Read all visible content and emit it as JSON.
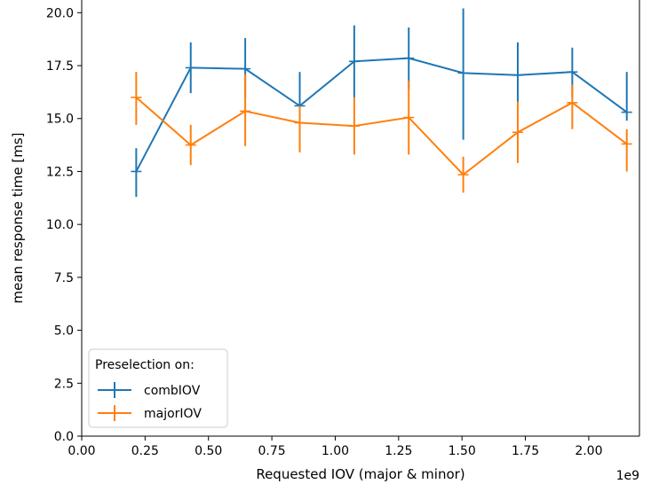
{
  "chart_data": {
    "type": "line",
    "xlabel": "Requested IOV (major & minor)",
    "ylabel": "mean response time [ms]",
    "x_offset_label": "1e9",
    "xlim": [
      0.0,
      2.2
    ],
    "ylim": [
      0.0,
      20.6
    ],
    "x_ticks": [
      "0.00",
      "0.25",
      "0.50",
      "0.75",
      "1.00",
      "1.25",
      "1.50",
      "1.75",
      "2.00"
    ],
    "y_ticks": [
      "0.0",
      "2.5",
      "5.0",
      "7.5",
      "10.0",
      "12.5",
      "15.0",
      "17.5",
      "20.0"
    ],
    "grid": false,
    "legend": {
      "title": "Preselection on:",
      "placement": "lower-left"
    },
    "x": [
      0.215,
      0.43,
      0.645,
      0.86,
      1.075,
      1.29,
      1.505,
      1.72,
      1.935,
      2.15
    ],
    "series": [
      {
        "name": "combIOV",
        "color": "#1f77b4",
        "values": [
          12.5,
          17.4,
          17.35,
          15.6,
          17.7,
          17.85,
          17.15,
          17.05,
          17.2,
          15.3
        ],
        "err_low": [
          11.3,
          16.2,
          16.0,
          15.2,
          16.0,
          16.4,
          14.0,
          15.5,
          16.0,
          14.9
        ],
        "err_high": [
          13.6,
          18.6,
          18.8,
          17.2,
          19.4,
          19.3,
          20.2,
          18.6,
          18.35,
          17.2
        ]
      },
      {
        "name": "majorIOV",
        "color": "#ff7f0e",
        "values": [
          16.0,
          13.75,
          15.35,
          14.8,
          14.65,
          15.05,
          12.35,
          14.35,
          15.75,
          13.8
        ],
        "err_low": [
          14.7,
          12.8,
          13.7,
          13.4,
          13.3,
          13.3,
          11.5,
          12.9,
          14.5,
          12.5
        ],
        "err_high": [
          17.2,
          14.7,
          17.1,
          15.6,
          16.0,
          16.8,
          13.2,
          15.8,
          16.6,
          14.5
        ]
      }
    ]
  }
}
